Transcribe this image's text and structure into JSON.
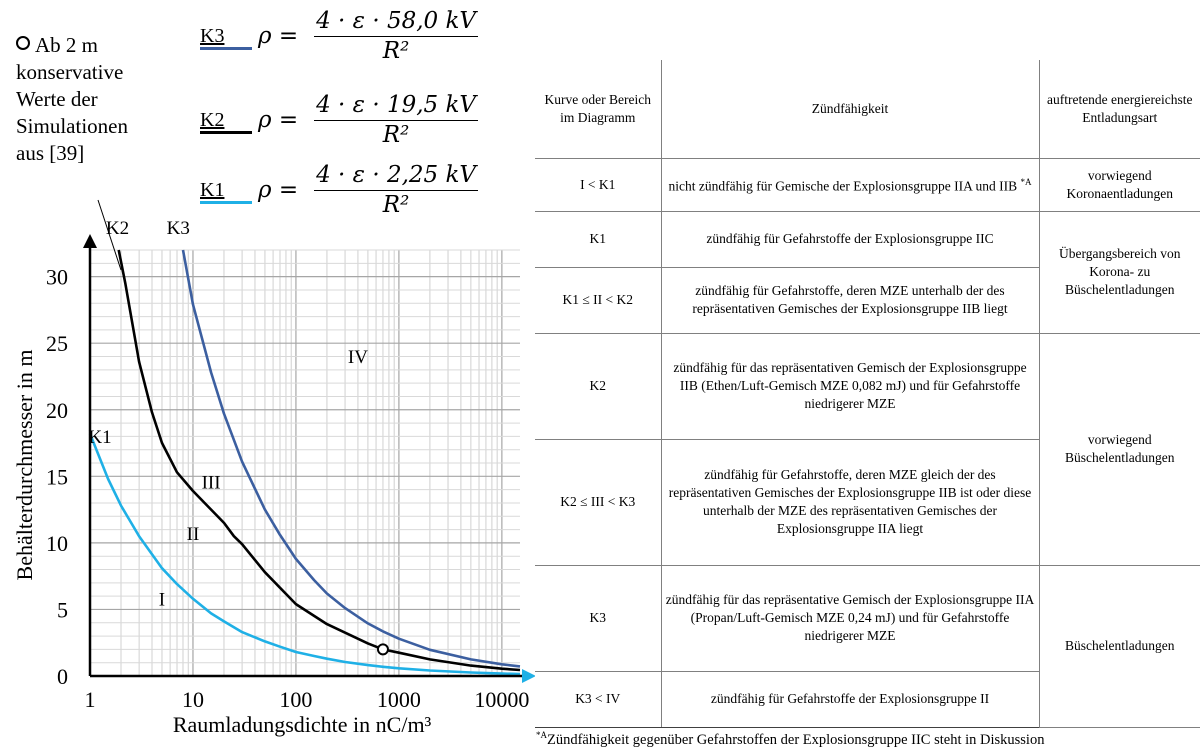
{
  "chart_data": {
    "type": "line",
    "xlabel": "Raumladungsdichte in nC/m³",
    "ylabel": "Behälterdurchmesser in m",
    "x_scale": "log",
    "xlim": [
      1,
      15000
    ],
    "ylim": [
      0,
      32
    ],
    "x_ticks": [
      1,
      10,
      100,
      1000,
      10000
    ],
    "x_tick_labels": [
      "1",
      "10",
      "100",
      "1000",
      "10000"
    ],
    "y_ticks": [
      0,
      5,
      10,
      15,
      20,
      25,
      30
    ],
    "y_tick_labels": [
      "0",
      "5",
      "10",
      "15",
      "20",
      "25",
      "30"
    ],
    "grid": true,
    "series": [
      {
        "name": "K1",
        "color": "#1fb0e6",
        "x": [
          1,
          1.5,
          2,
          3,
          5,
          7,
          10,
          15,
          20,
          30,
          50,
          70,
          100,
          150,
          200,
          300,
          500,
          700,
          1000,
          2000,
          5000,
          10000,
          15000
        ],
        "y": [
          18.2,
          14.8,
          12.8,
          10.5,
          8.1,
          6.9,
          5.8,
          4.7,
          4.1,
          3.3,
          2.6,
          2.2,
          1.8,
          1.5,
          1.3,
          1.05,
          0.82,
          0.69,
          0.58,
          0.41,
          0.26,
          0.18,
          0.15
        ]
      },
      {
        "name": "K2",
        "color": "#000000",
        "x": [
          1.9,
          2.2,
          3,
          4,
          5,
          7,
          10,
          15,
          20,
          25,
          30,
          50,
          100,
          200,
          500,
          700,
          1000,
          2000,
          5000,
          10000,
          15000
        ],
        "y": [
          32,
          29.5,
          23.6,
          19.8,
          17.5,
          15.3,
          13.9,
          12.5,
          11.5,
          10.5,
          9.9,
          7.8,
          5.4,
          3.9,
          2.45,
          2.0,
          1.75,
          1.25,
          0.78,
          0.55,
          0.45
        ]
      },
      {
        "name": "K3",
        "color": "#3c5fa0",
        "x": [
          8,
          10,
          15,
          20,
          30,
          50,
          70,
          100,
          150,
          200,
          300,
          500,
          700,
          1000,
          2000,
          5000,
          10000,
          15000
        ],
        "y": [
          32,
          27.9,
          22.8,
          19.7,
          16.1,
          12.5,
          10.6,
          8.8,
          7.2,
          6.2,
          5.1,
          3.95,
          3.35,
          2.8,
          1.97,
          1.25,
          0.88,
          0.72
        ]
      }
    ],
    "marker": {
      "x": 700,
      "y": 2.0
    },
    "region_labels": [
      {
        "text": "I",
        "x": 5,
        "y": 5.3
      },
      {
        "text": "II",
        "x": 10,
        "y": 10.2
      },
      {
        "text": "III",
        "x": 15,
        "y": 14.1
      },
      {
        "text": "IV",
        "x": 400,
        "y": 23.5
      },
      {
        "text": "K1",
        "x": 1.25,
        "y": 17.5
      },
      {
        "text": "K2",
        "x": 1.85,
        "y": 33.2
      },
      {
        "text": "K3",
        "x": 7.2,
        "y": 33.2
      }
    ]
  },
  "legend": [
    {
      "key": "K3",
      "color": "#3c5fa0",
      "numerator": "4 · ε · 58,0 kV",
      "denominator": "R²"
    },
    {
      "key": "K2",
      "color": "#000000",
      "numerator": "4 · ε · 19,5 kV",
      "denominator": "R²"
    },
    {
      "key": "K1",
      "color": "#1fb0e6",
      "numerator": "4 · ε · 2,25 kV",
      "denominator": "R²"
    }
  ],
  "formula_lhs": "ρ =",
  "note": {
    "lines": [
      "Ab 2 m",
      "konservative",
      "Werte der",
      "Simulationen",
      "aus [39]"
    ]
  },
  "table": {
    "headers": [
      "Kurve oder Bereich im Diagramm",
      "Zündfähigkeit",
      "auftretende energiereichste Entladungsart"
    ],
    "rows": [
      {
        "curve": "I < K1",
        "ignition": "nicht zündfähig für Gemische der Explosionsgruppe IIA und IIB",
        "mark": "*A"
      },
      {
        "curve": "K1",
        "ignition": "zündfähig für Gefahrstoffe der Explosionsgruppe IIC"
      },
      {
        "curve": "K1 ≤ II <  K2",
        "ignition": "zündfähig für Gefahrstoffe, deren MZE unterhalb der des repräsentativen Gemisches der Explosionsgruppe IIB liegt"
      },
      {
        "curve": "K2",
        "ignition": "zündfähig für das repräsentativen Gemisch der Explosionsgruppe IIB (Ethen/Luft-Gemisch MZE 0,082 mJ) und für Gefahrstoffe niedrigerer MZE"
      },
      {
        "curve": "K2 ≤ III < K3",
        "ignition": "zündfähig für Gefahrstoffe, deren MZE gleich der des repräsentativen Gemisches der Explosionsgruppe IIB ist oder diese unterhalb der MZE des repräsentativen Gemisches der Explosionsgruppe IIA liegt"
      },
      {
        "curve": "K3",
        "ignition": "zündfähig für das repräsentative Gemisch der Explosionsgruppe IIA (Propan/Luft-Gemisch MZE 0,24 mJ) und für Gefahrstoffe niedrigerer MZE"
      },
      {
        "curve": "K3 < IV",
        "ignition": "zündfähig für Gefahrstoffe der Explosionsgruppe II"
      }
    ],
    "discharge_types": [
      "vorwiegend Koronaentladungen",
      "Übergangsbereich von Korona- zu Büschelentladungen",
      "vorwiegend Büschelentladungen",
      "Büschelentladungen"
    ]
  },
  "footnote": {
    "mark": "*A",
    "text": "Zündfähigkeit gegenüber Gefahrstoffen der Explosionsgruppe IIC steht in Diskussion"
  }
}
